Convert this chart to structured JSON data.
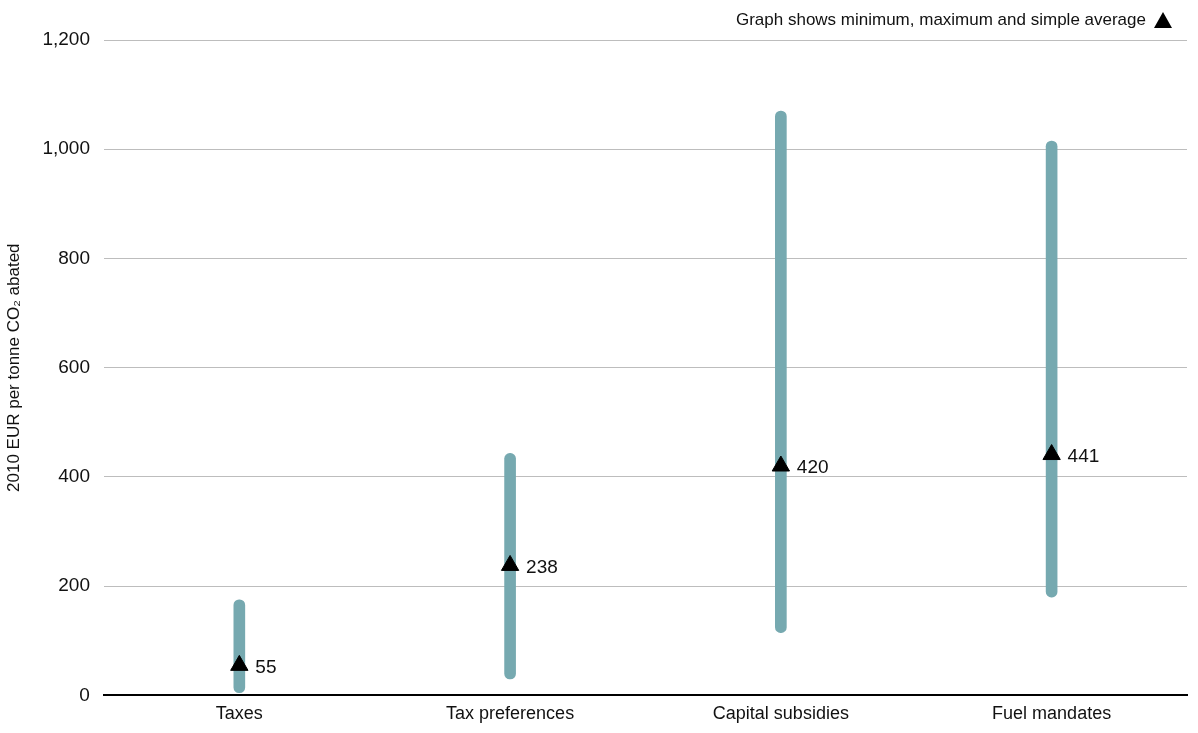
{
  "chart_data": {
    "type": "bar",
    "ylabel": "2010 EUR per tonne CO₂ abated",
    "categories": [
      "Taxes",
      "Tax preferences",
      "Capital subsidies",
      "Fuel mandates"
    ],
    "series": [
      {
        "type": "bar",
        "color": "#76a9b0",
        "base": [
          5,
          30,
          115,
          180
        ],
        "values": [
          170,
          413,
          955,
          835
        ]
      },
      {
        "type": "scatter",
        "color": "#000000",
        "marker": "triangle",
        "x": [
          "Taxes",
          "Tax preferences",
          "Capital subsidies",
          "Fuel mandates"
        ],
        "values": [
          55,
          238,
          420,
          441
        ],
        "value_labels": [
          "55",
          "238",
          "420",
          "441"
        ]
      }
    ],
    "ylim": [
      0,
      1200
    ],
    "yticks": [
      0,
      {
        "value": 200,
        "label": "200"
      },
      {
        "value": 400,
        "label": "400"
      },
      {
        "value": 600,
        "label": "600"
      },
      {
        "value": 800,
        "label": "800"
      },
      {
        "value": 1000,
        "label": "1,000"
      },
      {
        "value": 1200,
        "label": "1,200"
      }
    ],
    "grid": "y",
    "legend": false,
    "annotations": [
      "Graph shows minimum, maximum and simple average"
    ]
  }
}
